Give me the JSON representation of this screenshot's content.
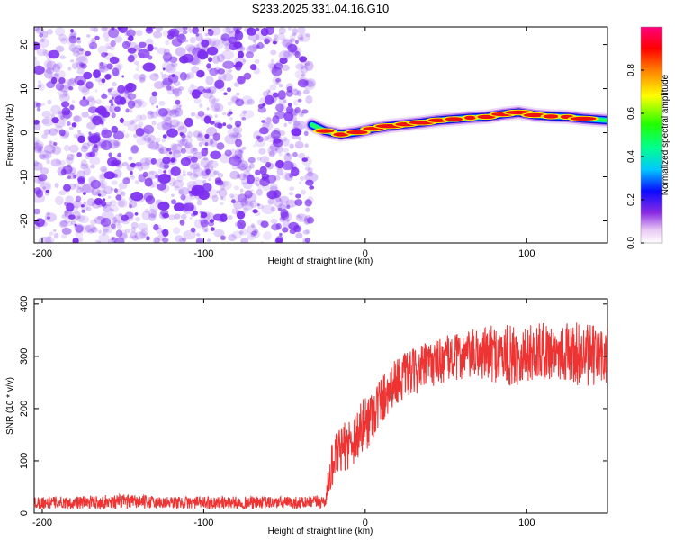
{
  "page_title": "S233.2025.331.04.16.G10",
  "colors": {
    "noise": "#7b2cf0",
    "trace_red": "#ee1111",
    "snr_line": "#ee3333",
    "axis": "#000000"
  },
  "chart_data": [
    {
      "id": "spectrogram",
      "type": "heatmap",
      "title": "S233.2025.331.04.16.G10",
      "xlabel": "Height of straight line (km)",
      "ylabel": "Frequency (Hz)",
      "xlim": [
        -205,
        150
      ],
      "ylim": [
        -25,
        24
      ],
      "x_ticks": [
        -200,
        -100,
        0,
        100
      ],
      "x_tick_labels": [
        "-200",
        "-100",
        "0",
        "100"
      ],
      "y_ticks": [
        -20,
        -10,
        0,
        10,
        20
      ],
      "y_tick_labels": [
        "-20",
        "-10",
        "0",
        "10",
        "20"
      ],
      "grid": false,
      "noise_region_x": [
        -205,
        -33
      ],
      "signal_track": {
        "x": [
          -33,
          -25,
          -15,
          -5,
          5,
          15,
          25,
          35,
          45,
          55,
          65,
          75,
          85,
          95,
          105,
          115,
          125,
          135,
          150
        ],
        "freq": [
          1.8,
          0.4,
          -0.4,
          0.1,
          0.9,
          1.5,
          1.9,
          2.3,
          2.8,
          3.1,
          3.4,
          3.6,
          4.2,
          4.6,
          4.0,
          3.7,
          3.6,
          3.2,
          2.8
        ]
      },
      "colorbar": {
        "label": "Normalized spectral amplitude",
        "range": [
          0.0,
          1.0
        ],
        "ticks": [
          0.0,
          0.2,
          0.4,
          0.6,
          0.8
        ],
        "tick_labels": [
          "0.0",
          "0.2",
          "0.4",
          "0.6",
          "0.8"
        ]
      }
    },
    {
      "id": "snr",
      "type": "line",
      "xlabel": "Height of straight line (km)",
      "ylabel": "SNR (10 * v/v)",
      "xlim": [
        -205,
        150
      ],
      "ylim": [
        0,
        410
      ],
      "x_ticks": [
        -200,
        -100,
        0,
        100
      ],
      "x_tick_labels": [
        "-200",
        "-100",
        "0",
        "100"
      ],
      "y_ticks": [
        0,
        100,
        200,
        300,
        400
      ],
      "y_tick_labels": [
        "0",
        "100",
        "200",
        "300",
        "400"
      ],
      "grid": false,
      "series": [
        {
          "name": "SNR",
          "x": [
            -205,
            -180,
            -150,
            -120,
            -90,
            -60,
            -35,
            -25,
            -20,
            -15,
            -10,
            -5,
            0,
            5,
            10,
            15,
            20,
            30,
            40,
            50,
            60,
            70,
            80,
            90,
            100,
            110,
            120,
            130,
            140,
            150
          ],
          "y": [
            20,
            20,
            22,
            20,
            20,
            20,
            20,
            22,
            100,
            120,
            135,
            150,
            170,
            195,
            215,
            240,
            255,
            270,
            285,
            295,
            300,
            305,
            305,
            300,
            305,
            310,
            310,
            305,
            300,
            300
          ],
          "noise_amplitude": [
            12,
            12,
            14,
            12,
            12,
            12,
            12,
            14,
            45,
            45,
            50,
            55,
            55,
            55,
            50,
            45,
            45,
            45,
            45,
            45,
            45,
            50,
            55,
            60,
            55,
            55,
            55,
            60,
            60,
            60
          ]
        }
      ]
    }
  ]
}
